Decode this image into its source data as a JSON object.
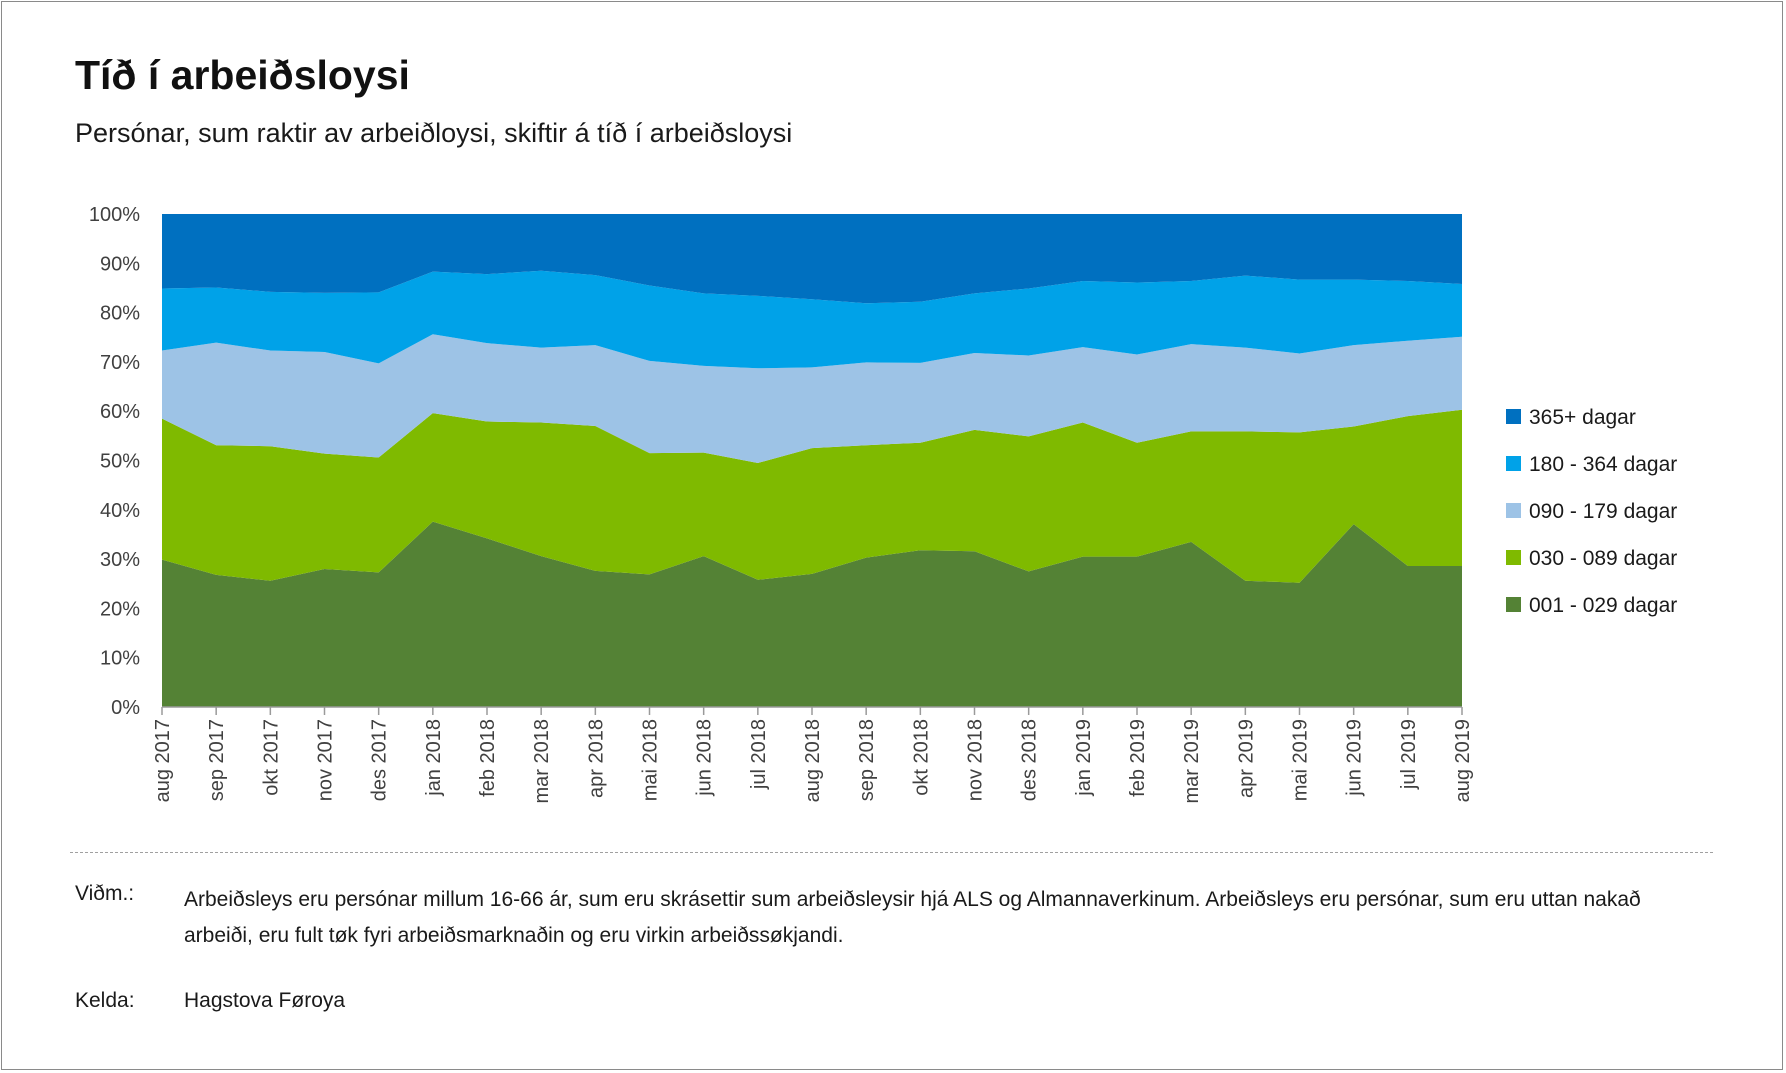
{
  "header": {
    "title": "Tíð í arbeiðsloysi",
    "subtitle": "Persónar, sum raktir av arbeiðloysi, skiftir á tíð í arbeiðsloysi"
  },
  "chart_data": {
    "type": "area",
    "stacked": true,
    "percent": true,
    "ylim": [
      0,
      100
    ],
    "yticks": [
      "0%",
      "10%",
      "20%",
      "30%",
      "40%",
      "50%",
      "60%",
      "70%",
      "80%",
      "90%",
      "100%"
    ],
    "grid": false,
    "legend_position": "right",
    "categories": [
      "aug 2017",
      "sep 2017",
      "okt 2017",
      "nov 2017",
      "des 2017",
      "jan 2018",
      "feb 2018",
      "mar 2018",
      "apr 2018",
      "mai 2018",
      "jun 2018",
      "jul 2018",
      "aug 2018",
      "sep 2018",
      "okt 2018",
      "nov 2018",
      "des 2018",
      "jan 2019",
      "feb 2019",
      "mar 2019",
      "apr 2019",
      "mai 2019",
      "jun 2019",
      "jul 2019",
      "aug 2019"
    ],
    "series": [
      {
        "name": "001 - 029 dagar",
        "color": "#548235",
        "values": [
          29.9,
          26.8,
          25.6,
          28.0,
          27.3,
          37.6,
          34.2,
          30.6,
          27.6,
          26.9,
          30.6,
          25.8,
          27.0,
          30.3,
          31.8,
          31.6,
          27.5,
          30.5,
          30.5,
          33.5,
          25.6,
          25.2,
          37.1,
          28.6,
          28.6
        ]
      },
      {
        "name": "030 - 089 dagar",
        "color": "#7fba00",
        "values": [
          28.6,
          26.3,
          27.3,
          23.4,
          23.3,
          22.0,
          23.7,
          27.1,
          29.4,
          24.6,
          21.0,
          23.7,
          25.5,
          22.8,
          21.8,
          24.6,
          27.4,
          27.2,
          23.1,
          22.4,
          30.3,
          30.5,
          19.8,
          30.4,
          31.7
        ]
      },
      {
        "name": "090 - 179 dagar",
        "color": "#9dc3e6",
        "values": [
          13.8,
          20.8,
          19.4,
          20.6,
          19.1,
          16.0,
          15.9,
          15.2,
          16.4,
          18.7,
          17.6,
          19.2,
          16.4,
          16.8,
          16.2,
          15.6,
          16.4,
          15.3,
          17.9,
          17.7,
          17.0,
          16.0,
          16.5,
          15.3,
          14.8
        ]
      },
      {
        "name": "180 - 364 dagar",
        "color": "#00a2e8",
        "values": [
          12.6,
          11.2,
          11.9,
          12.0,
          14.4,
          12.7,
          14.0,
          15.6,
          14.2,
          15.3,
          14.7,
          14.7,
          13.8,
          12.0,
          12.4,
          12.1,
          13.6,
          13.4,
          14.6,
          12.8,
          14.6,
          15.0,
          13.3,
          12.1,
          10.7
        ]
      },
      {
        "name": "365+ dagar",
        "color": "#0070c0",
        "values": [
          15.1,
          14.9,
          15.8,
          16.0,
          15.9,
          11.7,
          12.2,
          11.5,
          12.4,
          14.5,
          16.1,
          16.6,
          17.3,
          18.1,
          17.8,
          16.1,
          15.1,
          13.6,
          13.9,
          13.6,
          12.5,
          13.3,
          13.3,
          13.6,
          14.2
        ]
      }
    ],
    "legend_order": [
      "365+ dagar",
      "180 - 364 dagar",
      "090 - 179 dagar",
      "030 - 089 dagar",
      "001 - 029 dagar"
    ]
  },
  "footer": {
    "note_label": "Viðm.:",
    "note_text": "Arbeiðsleys eru persónar millum 16-66 ár, sum eru skrásettir sum arbeiðsleysir hjá ALS og Almannaverkinum. Arbeiðsleys eru persónar, sum eru uttan nakað arbeiði, eru fult tøk fyri arbeiðsmarknaðin og eru virkin arbeiðssøkjandi.",
    "source_label": "Kelda:",
    "source_text": "Hagstova Føroya"
  }
}
